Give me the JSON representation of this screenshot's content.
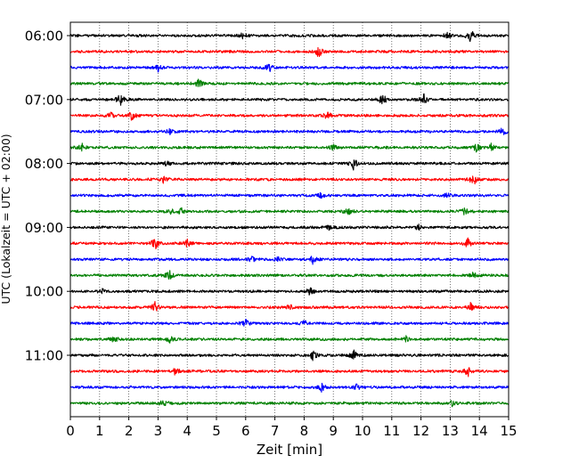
{
  "chart_data": {
    "type": "line",
    "title": "",
    "xlabel": "Zeit  [min]",
    "ylabel": "UTC (Lokalzeit = UTC + 02:00)",
    "xlim": [
      0,
      15
    ],
    "x_ticks": [
      "0",
      "1",
      "2",
      "3",
      "4",
      "5",
      "6",
      "7",
      "8",
      "9",
      "10",
      "11",
      "12",
      "13",
      "14",
      "15"
    ],
    "y_tick_labels": [
      "06:00",
      "07:00",
      "08:00",
      "09:00",
      "10:00",
      "11:00"
    ],
    "grid": "vertical dotted lines at each minute",
    "traces_per_hour": 4,
    "trace_count": 24,
    "trace_start_times": [
      "06:00",
      "06:15",
      "06:30",
      "06:45",
      "07:00",
      "07:15",
      "07:30",
      "07:45",
      "08:00",
      "08:15",
      "08:30",
      "08:45",
      "09:00",
      "09:15",
      "09:30",
      "09:45",
      "10:00",
      "10:15",
      "10:30",
      "10:45",
      "11:00",
      "11:15",
      "11:30",
      "11:45"
    ],
    "trace_colors": [
      "#000000",
      "#ff0000",
      "#0000ff",
      "#008000"
    ],
    "events": [
      [
        [
          13.7,
          1.0
        ],
        [
          12.9,
          0.5
        ],
        [
          5.9,
          0.4
        ]
      ],
      [
        [
          8.5,
          0.9
        ]
      ],
      [
        [
          6.8,
          0.7
        ],
        [
          3.0,
          0.5
        ]
      ],
      [
        [
          4.4,
          0.7
        ]
      ],
      [
        [
          1.7,
          0.9
        ],
        [
          10.7,
          1.0
        ],
        [
          12.1,
          0.7
        ]
      ],
      [
        [
          2.1,
          0.6
        ],
        [
          8.8,
          0.6
        ],
        [
          1.4,
          0.4
        ]
      ],
      [
        [
          3.4,
          0.5
        ],
        [
          14.8,
          0.5
        ]
      ],
      [
        [
          0.4,
          0.5
        ],
        [
          13.9,
          0.6
        ],
        [
          14.4,
          0.5
        ],
        [
          9.0,
          0.4
        ]
      ],
      [
        [
          9.7,
          0.9
        ],
        [
          3.3,
          0.4
        ]
      ],
      [
        [
          3.2,
          0.6
        ],
        [
          13.8,
          0.8
        ]
      ],
      [
        [
          8.6,
          0.6
        ],
        [
          12.9,
          0.4
        ]
      ],
      [
        [
          3.5,
          0.5
        ],
        [
          3.8,
          0.4
        ],
        [
          9.5,
          0.5
        ],
        [
          13.5,
          0.5
        ]
      ],
      [
        [
          8.9,
          0.8
        ],
        [
          11.9,
          0.4
        ]
      ],
      [
        [
          2.9,
          0.9
        ],
        [
          4.0,
          0.6
        ],
        [
          13.6,
          0.8
        ]
      ],
      [
        [
          8.3,
          0.6
        ],
        [
          6.2,
          0.4
        ],
        [
          7.1,
          0.4
        ]
      ],
      [
        [
          3.4,
          0.7
        ],
        [
          13.8,
          0.5
        ]
      ],
      [
        [
          8.2,
          0.5
        ],
        [
          1.1,
          0.3
        ]
      ],
      [
        [
          2.9,
          0.8
        ],
        [
          7.5,
          0.5
        ],
        [
          13.7,
          0.6
        ]
      ],
      [
        [
          6.0,
          0.5
        ],
        [
          8.0,
          0.4
        ]
      ],
      [
        [
          1.5,
          0.4
        ],
        [
          3.4,
          0.5
        ],
        [
          11.5,
          0.4
        ]
      ],
      [
        [
          8.3,
          0.7
        ],
        [
          9.7,
          0.6
        ]
      ],
      [
        [
          3.6,
          0.5
        ],
        [
          13.6,
          0.7
        ]
      ],
      [
        [
          8.6,
          0.6
        ],
        [
          9.8,
          0.4
        ]
      ],
      [
        [
          3.2,
          0.5
        ],
        [
          13.1,
          0.5
        ]
      ]
    ]
  }
}
